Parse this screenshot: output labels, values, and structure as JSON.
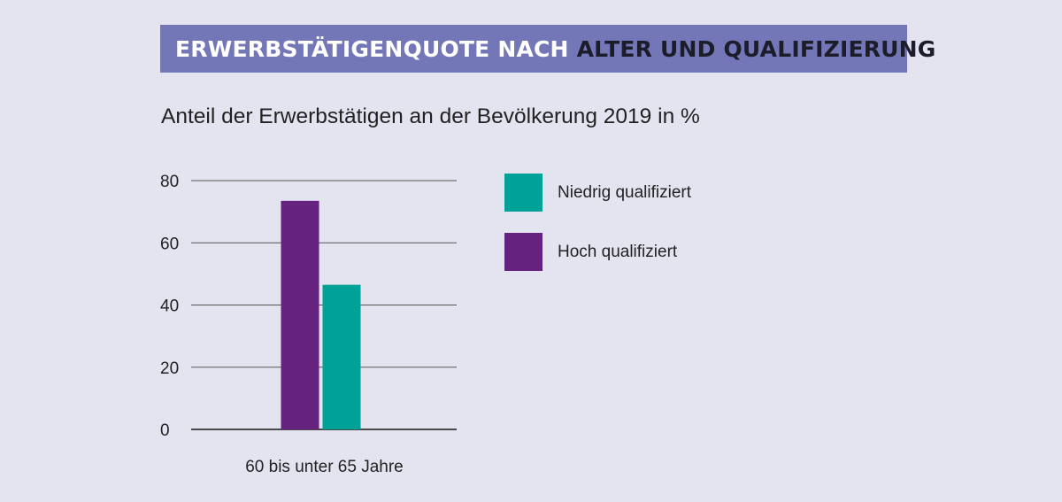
{
  "header": {
    "title_part1": "ERWERBSTÄTIGENQUOTE NACH",
    "title_part2": "ALTER UND QUALIFIZIERUNG",
    "subtitle": "Anteil der Erwerbstätigen an der Bevölkerung 2019 in %"
  },
  "colors": {
    "background": "#e4e4f1",
    "banner": "#7377b7",
    "niedrig": "#00a196",
    "hoch": "#65227f"
  },
  "legend": {
    "items": [
      {
        "label": "Niedrig qualifiziert",
        "color": "#00a196"
      },
      {
        "label": "Hoch qualifiziert",
        "color": "#65227f"
      }
    ],
    "placement": "right"
  },
  "chart_data": {
    "type": "bar",
    "title": "Anteil der Erwerbstätigen an der Bevölkerung 2019 in %",
    "categories": [
      "60 bis unter 65 Jahre"
    ],
    "series": [
      {
        "name": "Hoch qualifiziert",
        "values": [
          73.5
        ],
        "color": "#65227f"
      },
      {
        "name": "Niedrig qualifiziert",
        "values": [
          46.5
        ],
        "color": "#00a196"
      }
    ],
    "ylim": [
      0,
      80
    ],
    "yticks": [
      0,
      20,
      40,
      60,
      80
    ],
    "grid": true,
    "xlabel": "",
    "ylabel": ""
  }
}
